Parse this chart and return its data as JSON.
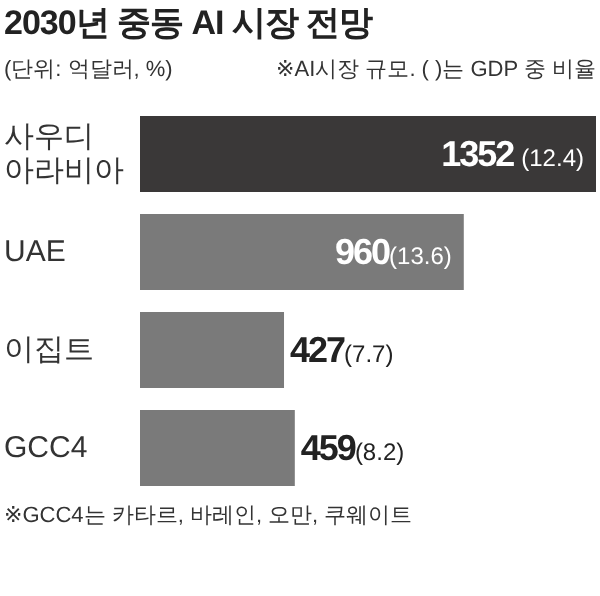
{
  "chart_data": {
    "type": "bar",
    "orientation": "horizontal",
    "title": "2030년 중동 AI 시장 전망",
    "subtitle": "(단위: 억달러, %)",
    "annotations": [
      "※AI시장 규모. ( )는 GDP 중 비율",
      "※GCC4는 카타르, 바레인, 오만, 쿠웨이트"
    ],
    "categories": [
      "사우디아라비아",
      "UAE",
      "이집트",
      "GCC4"
    ],
    "values": [
      1352,
      960,
      427,
      459
    ],
    "colors": [
      "#3a3838",
      "#7a7a7a",
      "#7a7a7a",
      "#7a7a7a"
    ],
    "value_labels": [
      "1352 (12.4)",
      "960(13.6)",
      "427(7.7)",
      "459(8.2)"
    ]
  }
}
